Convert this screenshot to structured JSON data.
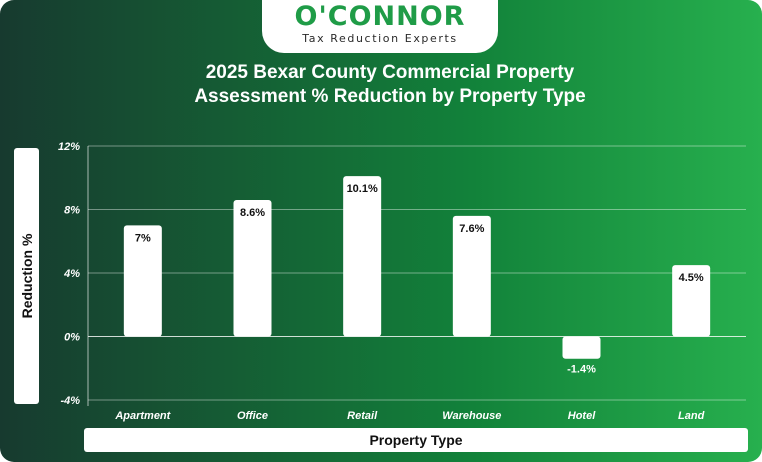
{
  "logo": {
    "wordmark": "O'CONNOR",
    "tagline": "Tax Reduction Experts"
  },
  "chart_data": {
    "type": "bar",
    "title": "2025 Bexar County Commercial Property Assessment % Reduction by Property Type",
    "title_lines": [
      "2025 Bexar County Commercial Property",
      "Assessment % Reduction by Property Type"
    ],
    "xlabel": "Property Type",
    "ylabel": "Reduction %",
    "categories": [
      "Apartment",
      "Office",
      "Retail",
      "Warehouse",
      "Hotel",
      "Land"
    ],
    "values": [
      7,
      8.6,
      10.1,
      7.6,
      -1.4,
      4.5
    ],
    "data_labels": [
      "7%",
      "8.6%",
      "10.1%",
      "7.6%",
      "-1.4%",
      "4.5%"
    ],
    "yticks": [
      12,
      8,
      4,
      0,
      -4
    ],
    "ytick_labels": [
      "12%",
      "8%",
      "4%",
      "0%",
      "-4%"
    ],
    "ylim": [
      -4,
      12
    ],
    "grid": true,
    "legend": "none",
    "colors": {
      "bar": "#ffffff",
      "grid": "#ffffff",
      "label_positive": "#111111",
      "label_negative": "#ffffff",
      "logo_green": "#1f9c47"
    }
  }
}
